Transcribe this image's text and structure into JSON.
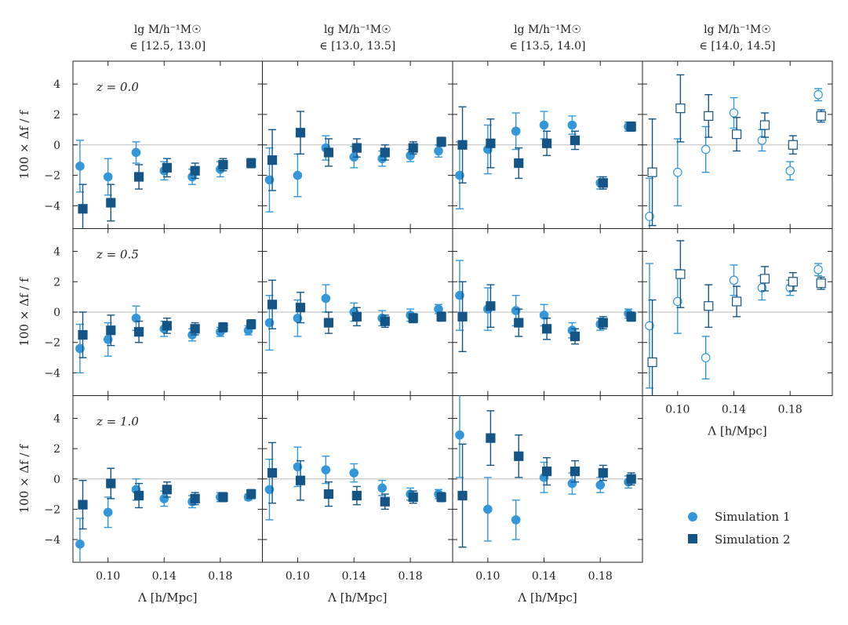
{
  "colors": {
    "sim1": "#3397d9",
    "sim2": "#145587",
    "zero_line": "#c8c8c8",
    "axis": "#222222"
  },
  "chart_data": {
    "type": "scatter",
    "xlabel": "Λ [h/Mpc]",
    "ylabel": "100 × Δf / f",
    "xlim": [
      0.075,
      0.21
    ],
    "ylim": [
      -5.5,
      5.5
    ],
    "xticks": [
      0.1,
      0.14,
      0.18
    ],
    "xtick_labels": [
      "0.10",
      "0.14",
      "0.18"
    ],
    "yticks": [
      -4,
      -2,
      0,
      2,
      4
    ],
    "ytick_labels": [
      "−4",
      "−2",
      "0",
      "2",
      "4"
    ],
    "columns": [
      {
        "line1": "lg M/h⁻¹M☉",
        "line2": "∈ [12.5, 13.0]"
      },
      {
        "line1": "lg M/h⁻¹M☉",
        "line2": "∈ [13.0, 13.5]"
      },
      {
        "line1": "lg M/h⁻¹M☉",
        "line2": "∈ [13.5, 14.0]"
      },
      {
        "line1": "lg M/h⁻¹M☉",
        "line2": "∈ [14.0, 14.5]"
      }
    ],
    "redshift_labels": [
      "z = 0.0",
      "z = 0.5",
      "z = 1.0"
    ],
    "legend": {
      "sim1": "Simulation 1",
      "sim2": "Simulation 2"
    },
    "x1": [
      0.08,
      0.1,
      0.12,
      0.14,
      0.16,
      0.18,
      0.2
    ],
    "x2": [
      0.082,
      0.102,
      0.122,
      0.142,
      0.162,
      0.182,
      0.202
    ],
    "panels": [
      {
        "row": 0,
        "col": 0,
        "open": false,
        "sim1": [
          [
            -1.4,
            1.7
          ],
          [
            -2.1,
            1.2
          ],
          [
            -0.5,
            0.7
          ],
          [
            -1.7,
            0.6
          ],
          [
            -2.1,
            0.5
          ],
          [
            -1.6,
            0.5
          ],
          null
        ],
        "sim2": [
          [
            -4.2,
            1.6
          ],
          [
            -3.8,
            1.2
          ],
          [
            -2.1,
            0.8
          ],
          [
            -1.5,
            0.6
          ],
          [
            -1.7,
            0.5
          ],
          [
            -1.3,
            0.4
          ],
          [
            -1.2,
            0.3
          ]
        ]
      },
      {
        "row": 0,
        "col": 1,
        "open": false,
        "sim1": [
          [
            -2.3,
            2.1
          ],
          [
            -2.0,
            1.4
          ],
          [
            -0.2,
            0.8
          ],
          [
            -0.8,
            0.7
          ],
          [
            -0.9,
            0.5
          ],
          [
            -0.7,
            0.4
          ],
          [
            -0.4,
            0.4
          ]
        ],
        "sim2": [
          [
            -1.0,
            2.0
          ],
          [
            0.8,
            1.4
          ],
          [
            -0.5,
            0.9
          ],
          [
            -0.2,
            0.6
          ],
          [
            -0.5,
            0.5
          ],
          [
            -0.2,
            0.4
          ],
          [
            0.2,
            0.3
          ]
        ]
      },
      {
        "row": 0,
        "col": 2,
        "open": false,
        "sim1": [
          [
            -2.0,
            2.2
          ],
          [
            -0.3,
            1.6
          ],
          [
            0.9,
            1.2
          ],
          [
            1.3,
            0.9
          ],
          [
            1.3,
            0.6
          ],
          [
            -2.5,
            0.4
          ],
          [
            1.2,
            0.3
          ]
        ],
        "sim2": [
          [
            0.0,
            2.5
          ],
          [
            0.1,
            1.6
          ],
          [
            -1.2,
            1.0
          ],
          [
            0.1,
            0.8
          ],
          [
            0.3,
            0.6
          ],
          [
            -2.5,
            0.4
          ],
          [
            1.2,
            0.3
          ]
        ]
      },
      {
        "row": 0,
        "col": 3,
        "open": true,
        "sim1": [
          [
            -4.7,
            2.5
          ],
          [
            -1.8,
            2.2
          ],
          [
            -0.3,
            1.5
          ],
          [
            2.1,
            1.0
          ],
          [
            0.3,
            0.7
          ],
          [
            -1.7,
            0.6
          ],
          [
            3.3,
            0.4
          ]
        ],
        "sim2": [
          [
            -1.8,
            3.5
          ],
          [
            2.4,
            2.2
          ],
          [
            1.9,
            1.4
          ],
          [
            0.7,
            1.1
          ],
          [
            1.3,
            0.8
          ],
          [
            0.0,
            0.6
          ],
          [
            1.9,
            0.4
          ]
        ]
      },
      {
        "row": 1,
        "col": 0,
        "open": false,
        "sim1": [
          [
            -2.4,
            1.6
          ],
          [
            -1.8,
            1.1
          ],
          [
            -0.4,
            0.8
          ],
          [
            -1.1,
            0.5
          ],
          [
            -1.5,
            0.4
          ],
          [
            -1.3,
            0.3
          ],
          [
            -1.2,
            0.3
          ]
        ],
        "sim2": [
          [
            -1.5,
            1.5
          ],
          [
            -1.2,
            1.0
          ],
          [
            -1.3,
            0.7
          ],
          [
            -0.9,
            0.5
          ],
          [
            -1.1,
            0.4
          ],
          [
            -1.0,
            0.3
          ],
          [
            -0.8,
            0.3
          ]
        ]
      },
      {
        "row": 1,
        "col": 1,
        "open": false,
        "sim1": [
          [
            -0.7,
            1.8
          ],
          [
            -0.4,
            1.2
          ],
          [
            0.9,
            0.9
          ],
          [
            0.0,
            0.6
          ],
          [
            -0.4,
            0.5
          ],
          [
            -0.2,
            0.4
          ],
          [
            0.2,
            0.3
          ]
        ],
        "sim2": [
          [
            0.5,
            1.6
          ],
          [
            0.3,
            1.0
          ],
          [
            -0.7,
            0.7
          ],
          [
            -0.3,
            0.6
          ],
          [
            -0.6,
            0.4
          ],
          [
            -0.4,
            0.3
          ],
          [
            -0.3,
            0.3
          ]
        ]
      },
      {
        "row": 1,
        "col": 2,
        "open": false,
        "sim1": [
          [
            1.1,
            2.3
          ],
          [
            0.2,
            1.4
          ],
          [
            0.1,
            1.0
          ],
          [
            -0.2,
            0.7
          ],
          [
            -1.2,
            0.5
          ],
          [
            -0.8,
            0.4
          ],
          [
            -0.1,
            0.3
          ]
        ],
        "sim2": [
          [
            -0.3,
            2.3
          ],
          [
            0.4,
            1.4
          ],
          [
            -0.7,
            0.9
          ],
          [
            -1.1,
            0.7
          ],
          [
            -1.6,
            0.5
          ],
          [
            -0.7,
            0.4
          ],
          [
            -0.3,
            0.3
          ]
        ]
      },
      {
        "row": 1,
        "col": 3,
        "open": true,
        "sim1": [
          [
            -0.9,
            4.1
          ],
          [
            0.7,
            2.1
          ],
          [
            -3.0,
            1.4
          ],
          [
            2.1,
            1.0
          ],
          [
            1.6,
            0.8
          ],
          [
            1.6,
            0.5
          ],
          [
            2.8,
            0.4
          ]
        ],
        "sim2": [
          [
            -3.3,
            4.1
          ],
          [
            2.5,
            2.2
          ],
          [
            0.4,
            1.4
          ],
          [
            0.7,
            1.0
          ],
          [
            2.2,
            0.8
          ],
          [
            2.0,
            0.6
          ],
          [
            1.9,
            0.4
          ]
        ]
      },
      {
        "row": 2,
        "col": 0,
        "open": false,
        "sim1": [
          [
            -4.3,
            1.7
          ],
          [
            -2.2,
            1.0
          ],
          [
            -0.7,
            0.7
          ],
          [
            -1.3,
            0.5
          ],
          [
            -1.5,
            0.4
          ],
          [
            -1.2,
            0.3
          ],
          [
            -1.2,
            0.2
          ]
        ],
        "sim2": [
          [
            -1.7,
            1.6
          ],
          [
            -0.3,
            1.0
          ],
          [
            -1.1,
            0.8
          ],
          [
            -0.7,
            0.5
          ],
          [
            -1.3,
            0.4
          ],
          [
            -1.2,
            0.3
          ],
          [
            -1.0,
            0.3
          ]
        ]
      },
      {
        "row": 2,
        "col": 1,
        "open": false,
        "sim1": [
          [
            -0.7,
            2.0
          ],
          [
            0.8,
            1.3
          ],
          [
            0.6,
            0.9
          ],
          [
            0.4,
            0.6
          ],
          [
            -0.6,
            0.5
          ],
          [
            -1.0,
            0.4
          ],
          [
            -1.0,
            0.3
          ]
        ],
        "sim2": [
          [
            0.4,
            2.0
          ],
          [
            -0.1,
            1.3
          ],
          [
            -1.0,
            0.8
          ],
          [
            -1.1,
            0.6
          ],
          [
            -1.5,
            0.5
          ],
          [
            -1.2,
            0.4
          ],
          [
            -1.2,
            0.3
          ]
        ]
      },
      {
        "row": 2,
        "col": 2,
        "open": false,
        "sim1": [
          [
            2.9,
            2.8
          ],
          [
            -2.0,
            2.1
          ],
          [
            -2.7,
            1.3
          ],
          [
            0.1,
            1.0
          ],
          [
            -0.3,
            0.7
          ],
          [
            -0.4,
            0.5
          ],
          [
            -0.2,
            0.4
          ]
        ],
        "sim2": [
          [
            -1.1,
            3.4
          ],
          [
            2.7,
            1.8
          ],
          [
            1.5,
            1.4
          ],
          [
            0.5,
            0.9
          ],
          [
            0.5,
            0.7
          ],
          [
            0.4,
            0.5
          ],
          [
            0.0,
            0.4
          ]
        ]
      }
    ]
  }
}
